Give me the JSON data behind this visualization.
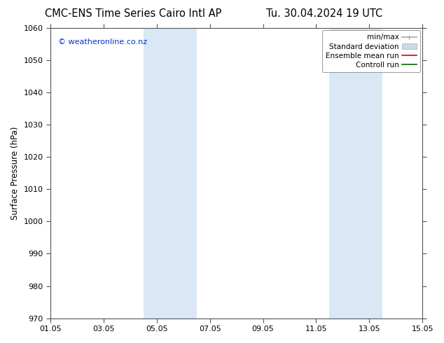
{
  "title_left": "CMC-ENS Time Series Cairo Intl AP",
  "title_right": "Tu. 30.04.2024 19 UTC",
  "ylabel": "Surface Pressure (hPa)",
  "ylim": [
    970,
    1060
  ],
  "yticks": [
    970,
    980,
    990,
    1000,
    1010,
    1020,
    1030,
    1040,
    1050,
    1060
  ],
  "xtick_labels": [
    "01.05",
    "03.05",
    "05.05",
    "07.05",
    "09.05",
    "11.05",
    "13.05",
    "15.05"
  ],
  "xtick_positions": [
    0,
    2,
    4,
    6,
    8,
    10,
    12,
    14
  ],
  "xlim": [
    0,
    14
  ],
  "shaded_bands": [
    {
      "x_start": 3.5,
      "x_end": 5.5,
      "color": "#dae8f5"
    },
    {
      "x_start": 10.5,
      "x_end": 12.5,
      "color": "#dae8f5"
    }
  ],
  "watermark_text": "© weatheronline.co.nz",
  "watermark_color": "#0033cc",
  "legend_items": [
    {
      "label": "min/max",
      "color": "#aaaaaa",
      "lw": 1.2
    },
    {
      "label": "Standard deviation",
      "color": "#c8dce8",
      "lw": 5
    },
    {
      "label": "Ensemble mean run",
      "color": "#dd0000",
      "lw": 1.2
    },
    {
      "label": "Controll run",
      "color": "#006600",
      "lw": 1.2
    }
  ],
  "background_color": "#ffffff",
  "spine_color": "#555555",
  "title_fontsize": 10.5,
  "axis_label_fontsize": 8.5,
  "tick_fontsize": 8,
  "legend_fontsize": 7.5,
  "watermark_fontsize": 8
}
